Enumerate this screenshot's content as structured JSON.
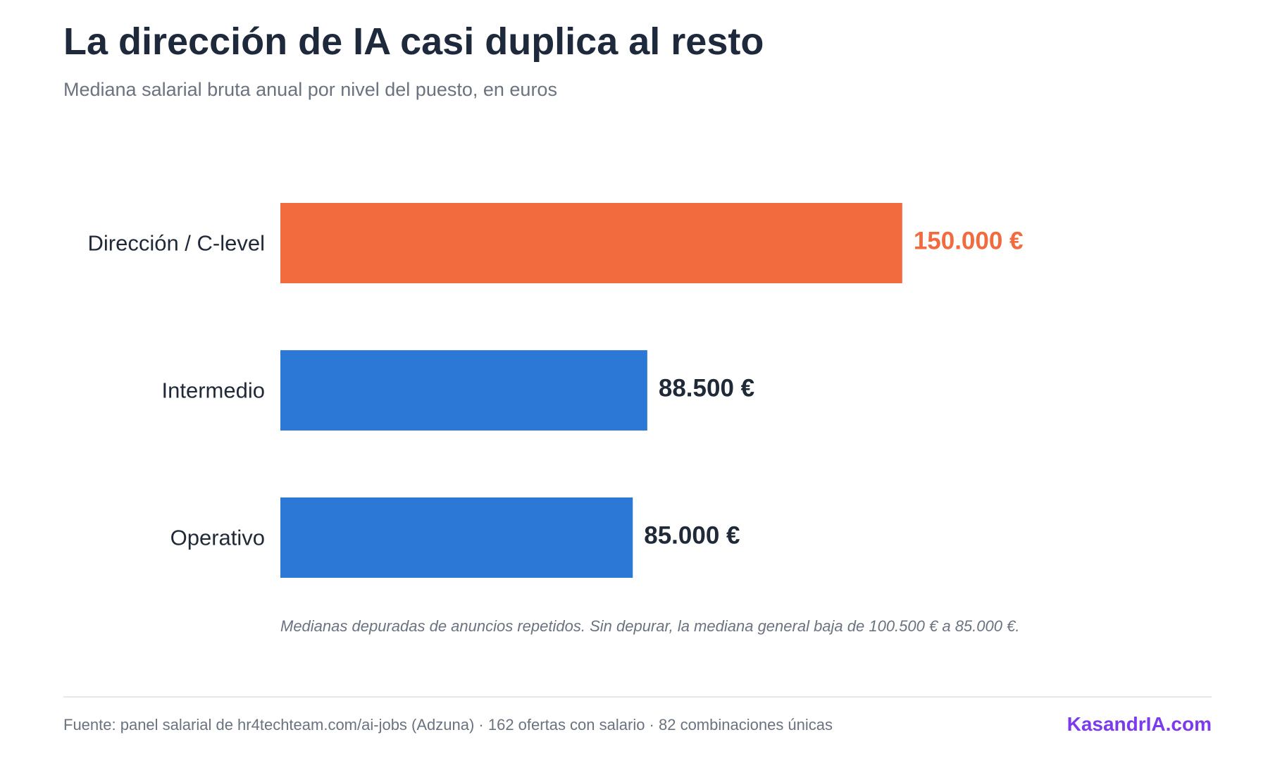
{
  "header": {
    "title": "La dirección de IA casi duplica al resto",
    "subtitle": "Mediana salarial bruta anual por nivel del puesto, en euros"
  },
  "chart_data": {
    "type": "bar",
    "orientation": "horizontal",
    "title": "La dirección de IA casi duplica al resto",
    "subtitle": "Mediana salarial bruta anual por nivel del puesto, en euros",
    "categories": [
      "Dirección / C-level",
      "Intermedio",
      "Operativo"
    ],
    "values": [
      150000,
      88500,
      85000
    ],
    "value_labels": [
      "150.000 €",
      "88.500 €",
      "85.000 €"
    ],
    "colors": [
      "#f26b3f",
      "#2b78d6",
      "#2b78d6"
    ],
    "label_colors": [
      "#f26b3f",
      "#1f2937",
      "#1f2937"
    ],
    "unit": "€",
    "xlim": [
      0,
      192000
    ],
    "grid": false,
    "legend": "none"
  },
  "note": "Medianas depuradas de anuncios repetidos. Sin depurar, la mediana general baja de 100.500 € a 85.000 €.",
  "footer": {
    "source": "Fuente: panel salarial de hr4techteam.com/ai-jobs (Adzuna) · 162 ofertas con salario · 82 combinaciones únicas",
    "brand": "KasandrIA.com"
  },
  "colors": {
    "highlight": "#f26b3f",
    "primary": "#2b78d6",
    "brand": "#7c3aed",
    "muted": "#6b7280",
    "text": "#1f2937"
  }
}
